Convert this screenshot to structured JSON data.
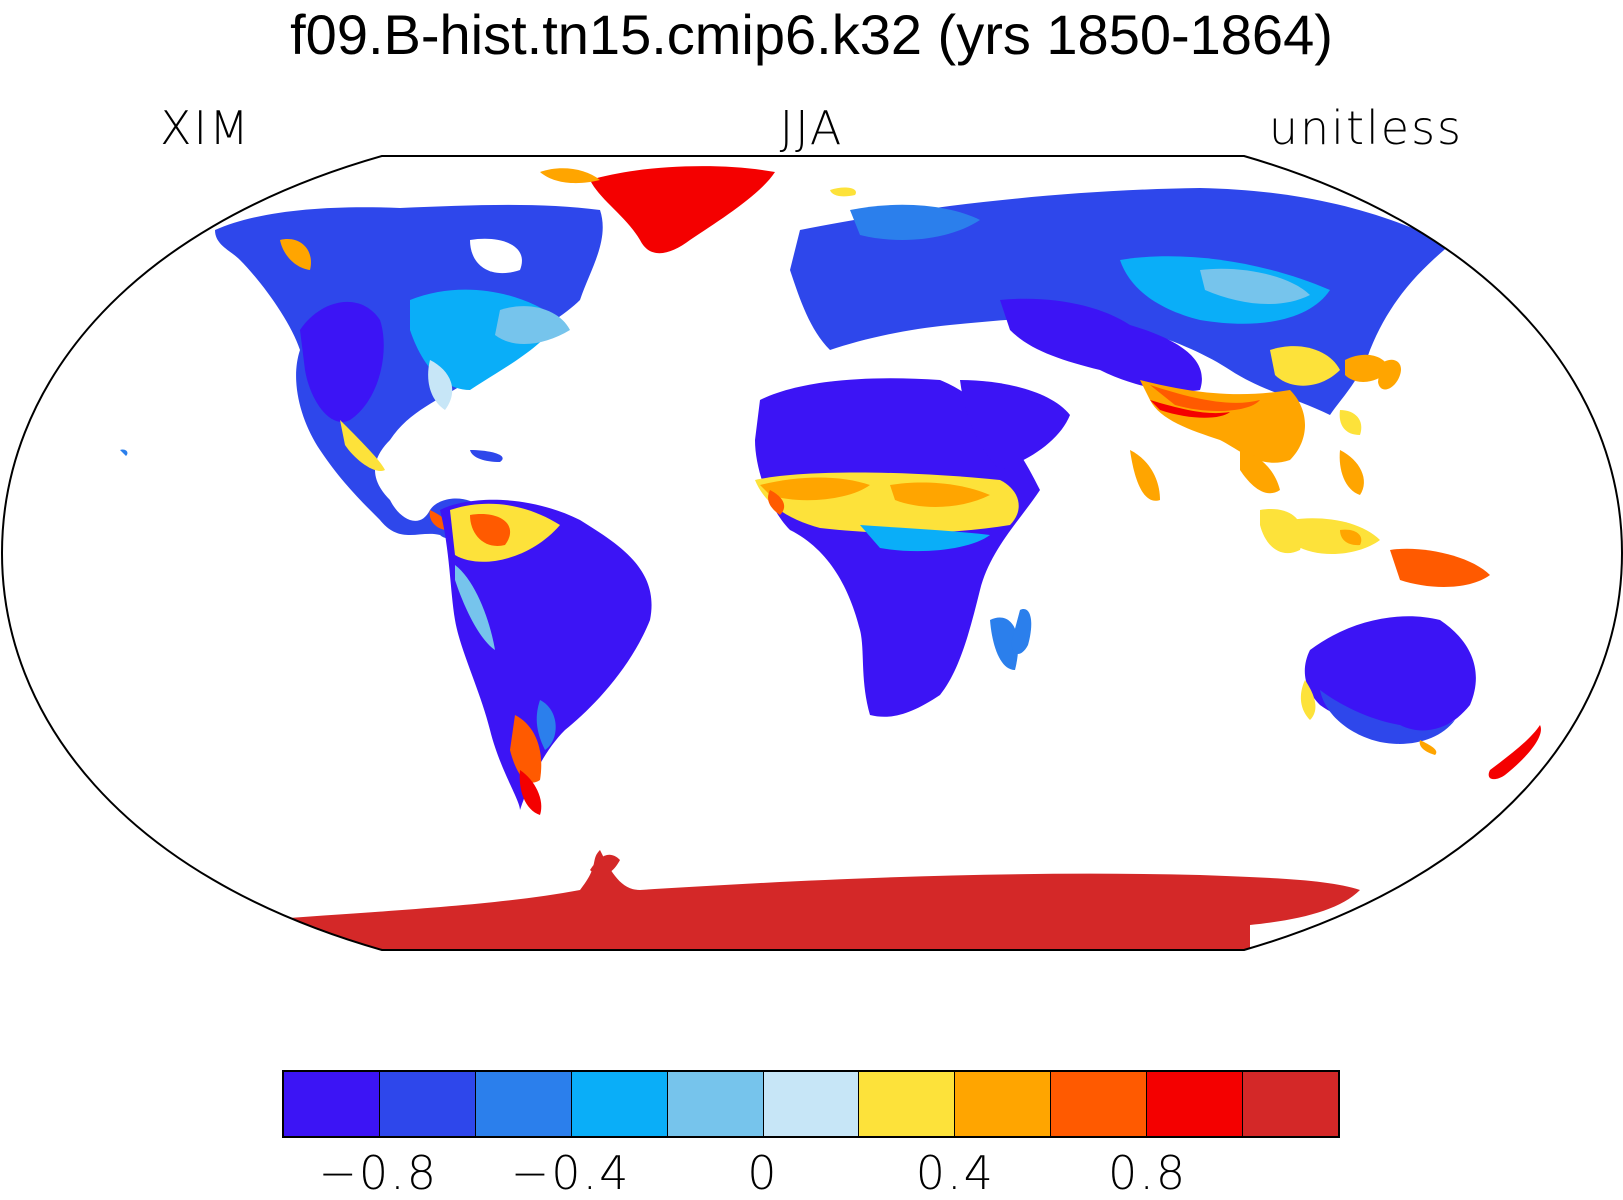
{
  "title": "f09.B-hist.tn15.cmip6.k32 (yrs 1850-1864)",
  "subtitle_left": "XIM",
  "subtitle_center": "JJA",
  "subtitle_right": "unitless",
  "colorbar": {
    "colors": [
      "#3c14f5",
      "#2e47eb",
      "#2b7fec",
      "#0aaef8",
      "#76c4ec",
      "#c7e6f7",
      "#fde23a",
      "#ffa500",
      "#ff5a00",
      "#f40000",
      "#d42828"
    ],
    "tick_values": [
      "−0.8",
      "−0.4",
      "0",
      "0.4",
      "0.8"
    ],
    "tick_boundaries": [
      1,
      3,
      5,
      7,
      9
    ],
    "n_boxes": 11
  }
}
